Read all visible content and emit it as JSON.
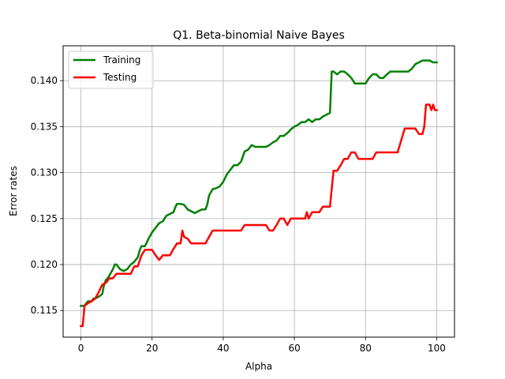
{
  "chart_data": {
    "type": "line",
    "title": "Q1. Beta-binomial Naive Bayes",
    "xlabel": "Alpha",
    "ylabel": "Error rates",
    "xlim": [
      -5,
      105
    ],
    "ylim": [
      0.1121,
      0.1438
    ],
    "xticks": [
      0,
      20,
      40,
      60,
      80,
      100
    ],
    "xtick_labels": [
      "0",
      "20",
      "40",
      "60",
      "80",
      "100"
    ],
    "yticks": [
      0.115,
      0.12,
      0.125,
      0.13,
      0.135,
      0.14
    ],
    "ytick_labels": [
      "0.115",
      "0.120",
      "0.125",
      "0.130",
      "0.135",
      "0.140"
    ],
    "grid": true,
    "legend_position": "top-left",
    "series": [
      {
        "name": "Training",
        "color": "#008000",
        "points": [
          [
            0,
            0.1155
          ],
          [
            1,
            0.1155
          ],
          [
            1.5,
            0.1158
          ],
          [
            2,
            0.116
          ],
          [
            3,
            0.116
          ],
          [
            3.5,
            0.1163
          ],
          [
            4,
            0.1163
          ],
          [
            5,
            0.1165
          ],
          [
            6,
            0.1168
          ],
          [
            6.5,
            0.1178
          ],
          [
            7,
            0.1183
          ],
          [
            7.5,
            0.1185
          ],
          [
            8,
            0.1188
          ],
          [
            9,
            0.1195
          ],
          [
            9.5,
            0.12
          ],
          [
            10,
            0.12
          ],
          [
            11,
            0.1195
          ],
          [
            12,
            0.1193
          ],
          [
            13,
            0.1195
          ],
          [
            14,
            0.12
          ],
          [
            15,
            0.1203
          ],
          [
            16,
            0.1208
          ],
          [
            16.5,
            0.1215
          ],
          [
            17,
            0.122
          ],
          [
            18,
            0.122
          ],
          [
            19,
            0.1228
          ],
          [
            20,
            0.1235
          ],
          [
            21,
            0.124
          ],
          [
            22,
            0.1245
          ],
          [
            23,
            0.1247
          ],
          [
            24,
            0.1253
          ],
          [
            25,
            0.1255
          ],
          [
            26,
            0.1257
          ],
          [
            26.5,
            0.1262
          ],
          [
            27,
            0.1266
          ],
          [
            28,
            0.1266
          ],
          [
            29,
            0.1265
          ],
          [
            30,
            0.126
          ],
          [
            31,
            0.1258
          ],
          [
            32,
            0.1256
          ],
          [
            33,
            0.1258
          ],
          [
            34,
            0.126
          ],
          [
            35,
            0.126
          ],
          [
            35.5,
            0.1265
          ],
          [
            36,
            0.1275
          ],
          [
            37,
            0.1282
          ],
          [
            38,
            0.1283
          ],
          [
            39,
            0.1285
          ],
          [
            40,
            0.129
          ],
          [
            41,
            0.1298
          ],
          [
            42,
            0.1303
          ],
          [
            43,
            0.1308
          ],
          [
            44,
            0.1308
          ],
          [
            45,
            0.1312
          ],
          [
            46,
            0.1323
          ],
          [
            47,
            0.1325
          ],
          [
            48,
            0.133
          ],
          [
            49,
            0.1328
          ],
          [
            50,
            0.1328
          ],
          [
            52,
            0.1328
          ],
          [
            53,
            0.133
          ],
          [
            54,
            0.1333
          ],
          [
            55,
            0.1335
          ],
          [
            56,
            0.134
          ],
          [
            57,
            0.134
          ],
          [
            58,
            0.1343
          ],
          [
            59,
            0.1347
          ],
          [
            60,
            0.135
          ],
          [
            61,
            0.1352
          ],
          [
            62,
            0.1355
          ],
          [
            63,
            0.1355
          ],
          [
            64,
            0.1358
          ],
          [
            65,
            0.1355
          ],
          [
            66,
            0.1358
          ],
          [
            67,
            0.1358
          ],
          [
            68,
            0.1361
          ],
          [
            69,
            0.1363
          ],
          [
            70,
            0.1365
          ],
          [
            70.5,
            0.141
          ],
          [
            71,
            0.141
          ],
          [
            72,
            0.1407
          ],
          [
            73,
            0.141
          ],
          [
            74,
            0.141
          ],
          [
            75,
            0.1407
          ],
          [
            76,
            0.1403
          ],
          [
            77,
            0.1397
          ],
          [
            78,
            0.1397
          ],
          [
            79,
            0.1397
          ],
          [
            80,
            0.1397
          ],
          [
            81,
            0.1403
          ],
          [
            82,
            0.1407
          ],
          [
            83,
            0.1407
          ],
          [
            84,
            0.1403
          ],
          [
            85,
            0.1403
          ],
          [
            86,
            0.1407
          ],
          [
            87,
            0.141
          ],
          [
            88,
            0.141
          ],
          [
            90,
            0.141
          ],
          [
            91,
            0.141
          ],
          [
            92,
            0.141
          ],
          [
            93,
            0.1413
          ],
          [
            94,
            0.1418
          ],
          [
            95,
            0.142
          ],
          [
            96,
            0.1422
          ],
          [
            97,
            0.1422
          ],
          [
            98,
            0.1422
          ],
          [
            99,
            0.142
          ],
          [
            100,
            0.142
          ]
        ]
      },
      {
        "name": "Testing",
        "color": "#ff0000",
        "points": [
          [
            0,
            0.1133
          ],
          [
            0.5,
            0.1133
          ],
          [
            1,
            0.1155
          ],
          [
            2,
            0.1158
          ],
          [
            3,
            0.116
          ],
          [
            4,
            0.1163
          ],
          [
            5,
            0.117
          ],
          [
            6,
            0.1178
          ],
          [
            7,
            0.118
          ],
          [
            8,
            0.1185
          ],
          [
            9,
            0.1185
          ],
          [
            10,
            0.119
          ],
          [
            11,
            0.119
          ],
          [
            12,
            0.119
          ],
          [
            13,
            0.119
          ],
          [
            14,
            0.119
          ],
          [
            15,
            0.1198
          ],
          [
            16,
            0.1198
          ],
          [
            17,
            0.121
          ],
          [
            18,
            0.1216
          ],
          [
            19,
            0.1216
          ],
          [
            20,
            0.1216
          ],
          [
            21,
            0.121
          ],
          [
            22,
            0.1205
          ],
          [
            23,
            0.121
          ],
          [
            24,
            0.121
          ],
          [
            25,
            0.121
          ],
          [
            26,
            0.1217
          ],
          [
            27,
            0.1223
          ],
          [
            28,
            0.1223
          ],
          [
            28.5,
            0.1237
          ],
          [
            29,
            0.123
          ],
          [
            30,
            0.1228
          ],
          [
            31,
            0.1223
          ],
          [
            33,
            0.1223
          ],
          [
            35,
            0.1223
          ],
          [
            36,
            0.123
          ],
          [
            37,
            0.1237
          ],
          [
            40,
            0.1237
          ],
          [
            45,
            0.1237
          ],
          [
            46,
            0.1243
          ],
          [
            50,
            0.1243
          ],
          [
            52,
            0.1243
          ],
          [
            53,
            0.1237
          ],
          [
            54,
            0.1237
          ],
          [
            55,
            0.1243
          ],
          [
            56,
            0.125
          ],
          [
            57,
            0.125
          ],
          [
            58,
            0.1243
          ],
          [
            59,
            0.125
          ],
          [
            61,
            0.125
          ],
          [
            63,
            0.125
          ],
          [
            63.5,
            0.1257
          ],
          [
            64,
            0.125
          ],
          [
            65,
            0.1257
          ],
          [
            67,
            0.1257
          ],
          [
            68,
            0.1263
          ],
          [
            70,
            0.1263
          ],
          [
            71,
            0.1302
          ],
          [
            72,
            0.1302
          ],
          [
            73,
            0.1308
          ],
          [
            74,
            0.1315
          ],
          [
            75,
            0.1315
          ],
          [
            76,
            0.1322
          ],
          [
            77,
            0.1322
          ],
          [
            78,
            0.1315
          ],
          [
            80,
            0.1315
          ],
          [
            82,
            0.1315
          ],
          [
            83,
            0.1322
          ],
          [
            85,
            0.1322
          ],
          [
            89,
            0.1322
          ],
          [
            90,
            0.1335
          ],
          [
            91,
            0.1348
          ],
          [
            92,
            0.1348
          ],
          [
            94,
            0.1348
          ],
          [
            95,
            0.1342
          ],
          [
            96,
            0.1342
          ],
          [
            96.5,
            0.135
          ],
          [
            97,
            0.1374
          ],
          [
            98,
            0.1374
          ],
          [
            98.5,
            0.1368
          ],
          [
            99,
            0.1374
          ],
          [
            99.5,
            0.1368
          ],
          [
            100,
            0.1368
          ]
        ]
      }
    ]
  }
}
